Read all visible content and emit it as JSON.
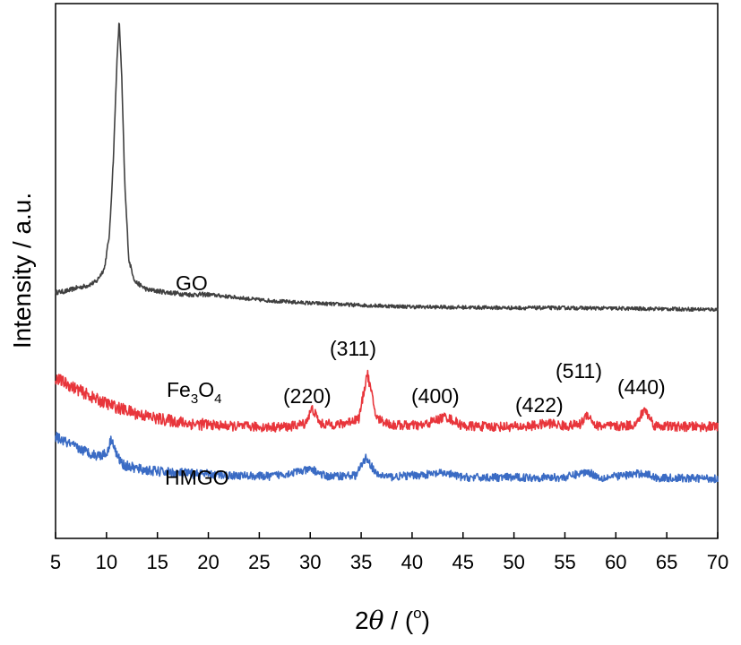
{
  "chart_data": {
    "type": "line",
    "xlabel": {
      "pre": "2",
      "theta": "θ",
      "post": " / (",
      "deg": "o",
      "close": ")"
    },
    "ylabel": "Intensity / a.u.",
    "xlim": [
      5,
      70
    ],
    "ylim": [
      0,
      100
    ],
    "x_ticks": [
      "5",
      "10",
      "15",
      "20",
      "25",
      "30",
      "35",
      "40",
      "45",
      "50",
      "55",
      "60",
      "65",
      "70"
    ],
    "y_ticks_shown": false,
    "grid": false,
    "legend": "none",
    "series": [
      {
        "name": "GO",
        "color": "#404040",
        "x": [
          5,
          6,
          7,
          8,
          9,
          9.8,
          10.3,
          10.7,
          11.0,
          11.25,
          11.5,
          11.8,
          12.2,
          12.8,
          14,
          16,
          18,
          20,
          22,
          25,
          28,
          30,
          35,
          40,
          45,
          50,
          55,
          60,
          65,
          70
        ],
        "y": [
          46.0,
          46.2,
          46.8,
          47.2,
          48.0,
          50.5,
          57.0,
          72.0,
          88.0,
          97.0,
          86.0,
          66.0,
          52.0,
          48.0,
          46.5,
          46.0,
          45.6,
          45.6,
          45.2,
          44.6,
          44.2,
          44.0,
          43.6,
          43.3,
          43.2,
          43.1,
          43.1,
          43.0,
          42.9,
          42.8
        ]
      },
      {
        "name": "Fe3O4",
        "label_main": "Fe",
        "label_sub1": "3",
        "label_mid": "O",
        "label_sub2": "4",
        "color": "#e8353b",
        "x": [
          5,
          7,
          9,
          11,
          13,
          15,
          18,
          22,
          26,
          28,
          29.5,
          30.2,
          31.0,
          33,
          34.8,
          35.6,
          36.5,
          38,
          41,
          43.3,
          45,
          48,
          51,
          53.6,
          55,
          56.5,
          57.2,
          58,
          60,
          62,
          62.8,
          63.8,
          66,
          70
        ],
        "y": [
          30.0,
          28.0,
          26.0,
          24.5,
          23.3,
          22.4,
          21.5,
          21.0,
          20.8,
          20.9,
          21.5,
          24.3,
          21.4,
          21.3,
          22.5,
          31.0,
          22.5,
          21.2,
          21.1,
          22.8,
          21.0,
          20.9,
          20.9,
          21.5,
          21.0,
          21.3,
          23.3,
          21.1,
          20.9,
          21.3,
          24.2,
          21.1,
          20.9,
          20.9
        ]
      },
      {
        "name": "HMGO",
        "color": "#3a6bc4",
        "x": [
          5,
          7,
          9,
          10.0,
          10.5,
          11.0,
          11.6,
          13,
          15,
          18,
          22,
          26,
          30.2,
          31.5,
          34.5,
          35.5,
          36.5,
          38,
          43.3,
          45,
          50,
          55,
          57.2,
          58.5,
          62.8,
          64,
          70
        ],
        "y": [
          19.0,
          17.0,
          15.5,
          15.8,
          18.8,
          15.6,
          13.8,
          13.0,
          12.5,
          12.1,
          11.8,
          11.6,
          12.9,
          11.6,
          11.8,
          15.2,
          11.9,
          11.5,
          12.2,
          11.4,
          11.4,
          11.4,
          12.5,
          11.3,
          12.2,
          11.3,
          11.2
        ]
      }
    ],
    "annotations": [
      {
        "text": "(220)",
        "x": 30.2
      },
      {
        "text": "(311)",
        "x": 35.6
      },
      {
        "text": "(400)",
        "x": 43.3
      },
      {
        "text": "(422)",
        "x": 53.6
      },
      {
        "text": "(511)",
        "x": 57.2
      },
      {
        "text": "(440)",
        "x": 62.8
      }
    ]
  }
}
